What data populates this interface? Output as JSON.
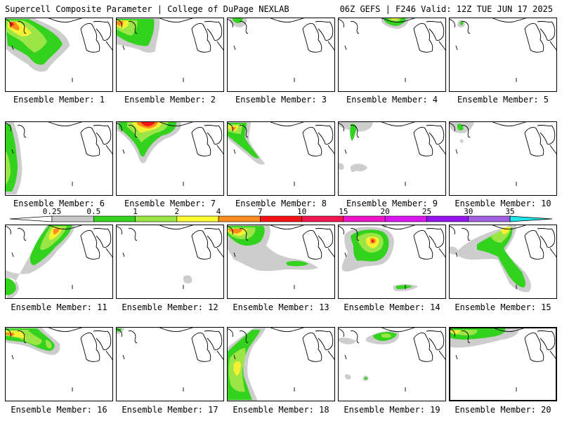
{
  "header": {
    "left_title": "Supercell Composite Parameter | College of DuPage NEXLAB",
    "right_title": "06Z GEFS | F246 Valid: 12Z TUE JUN 17 2025"
  },
  "colorbar": {
    "labels": [
      "0.25",
      "0.5",
      "1",
      "2",
      "4",
      "7",
      "10",
      "15",
      "20",
      "25",
      "30",
      "35"
    ],
    "colors": [
      "#c8c8c8",
      "#32d21e",
      "#9be646",
      "#fafa32",
      "#fa8c1e",
      "#f51414",
      "#f01450",
      "#f014c8",
      "#dc14f0",
      "#9614f0",
      "#a060e0",
      "#1ee6e6"
    ]
  },
  "colors": {
    "shade_light": "#cdcdcd",
    "shade_green": "#32d21e",
    "shade_lime": "#9be646",
    "shade_yellow": "#f5f032",
    "shade_orange": "#fa8c1e",
    "shade_red": "#f51414"
  },
  "panels": [
    {
      "label": "Ensemble Member: 1",
      "member": 1,
      "highlight": false
    },
    {
      "label": "Ensemble Member: 2",
      "member": 2,
      "highlight": false
    },
    {
      "label": "Ensemble Member: 3",
      "member": 3,
      "highlight": false
    },
    {
      "label": "Ensemble Member: 4",
      "member": 4,
      "highlight": false
    },
    {
      "label": "Ensemble Member: 5",
      "member": 5,
      "highlight": false
    },
    {
      "label": "Ensemble Member: 6",
      "member": 6,
      "highlight": false
    },
    {
      "label": "Ensemble Member: 7",
      "member": 7,
      "highlight": false
    },
    {
      "label": "Ensemble Member: 8",
      "member": 8,
      "highlight": false
    },
    {
      "label": "Ensemble Member: 9",
      "member": 9,
      "highlight": false
    },
    {
      "label": "Ensemble Member: 10",
      "member": 10,
      "highlight": false
    },
    {
      "label": "Ensemble Member: 11",
      "member": 11,
      "highlight": false
    },
    {
      "label": "Ensemble Member: 12",
      "member": 12,
      "highlight": false
    },
    {
      "label": "Ensemble Member: 13",
      "member": 13,
      "highlight": false
    },
    {
      "label": "Ensemble Member: 14",
      "member": 14,
      "highlight": false
    },
    {
      "label": "Ensemble Member: 15",
      "member": 15,
      "highlight": false
    },
    {
      "label": "Ensemble Member: 16",
      "member": 16,
      "highlight": false
    },
    {
      "label": "Ensemble Member: 17",
      "member": 17,
      "highlight": false
    },
    {
      "label": "Ensemble Member: 18",
      "member": 18,
      "highlight": false
    },
    {
      "label": "Ensemble Member: 19",
      "member": 19,
      "highlight": false
    },
    {
      "label": "Ensemble Member: 20",
      "member": 20,
      "highlight": true
    }
  ]
}
